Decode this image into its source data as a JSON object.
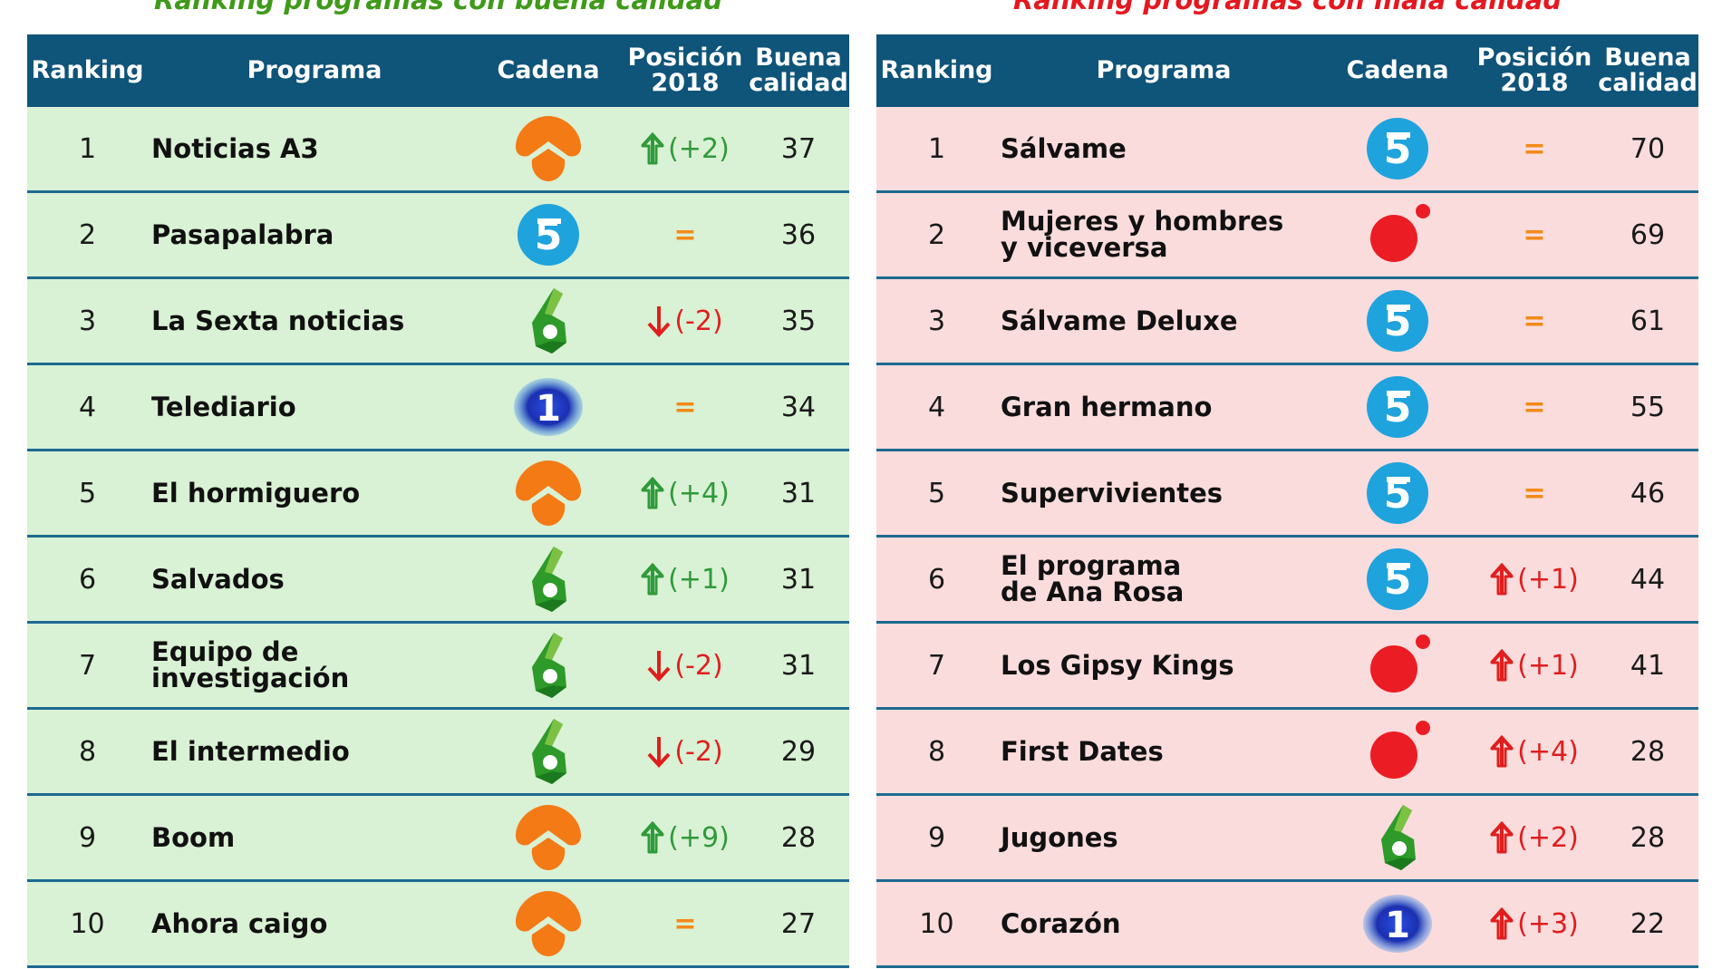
{
  "headers": {
    "ranking": "Ranking",
    "programa": "Programa",
    "cadena": "Cadena",
    "posicion_l1": "Posición",
    "posicion_l2": "2018",
    "calidad_l1": "Buena",
    "calidad_l2": "calidad"
  },
  "good": {
    "title": "Ranking programas con buena calidad",
    "rows": [
      {
        "rank": "1",
        "name_l1": "Noticias A3",
        "name_l2": "",
        "channel": "antena3",
        "channel_icon": "antena3-logo-icon",
        "move": "(+2)",
        "dir": "up",
        "score": "37"
      },
      {
        "rank": "2",
        "name_l1": "Pasapalabra",
        "name_l2": "",
        "channel": "telecinco",
        "channel_icon": "telecinco-logo-icon",
        "move": "=",
        "dir": "eq",
        "score": "36"
      },
      {
        "rank": "3",
        "name_l1": "La Sexta noticias",
        "name_l2": "",
        "channel": "lasexta",
        "channel_icon": "lasexta-logo-icon",
        "move": "(-2)",
        "dir": "down",
        "score": "35"
      },
      {
        "rank": "4",
        "name_l1": "Telediario",
        "name_l2": "",
        "channel": "la1",
        "channel_icon": "la1-logo-icon",
        "move": "=",
        "dir": "eq",
        "score": "34"
      },
      {
        "rank": "5",
        "name_l1": "El hormiguero",
        "name_l2": "",
        "channel": "antena3",
        "channel_icon": "antena3-logo-icon",
        "move": "(+4)",
        "dir": "up",
        "score": "31"
      },
      {
        "rank": "6",
        "name_l1": "Salvados",
        "name_l2": "",
        "channel": "lasexta",
        "channel_icon": "lasexta-logo-icon",
        "move": "(+1)",
        "dir": "up",
        "score": "31"
      },
      {
        "rank": "7",
        "name_l1": "Equipo de investigación",
        "name_l2": "",
        "channel": "lasexta",
        "channel_icon": "lasexta-logo-icon",
        "move": "(-2)",
        "dir": "down",
        "score": "31"
      },
      {
        "rank": "8",
        "name_l1": "El intermedio",
        "name_l2": "",
        "channel": "lasexta",
        "channel_icon": "lasexta-logo-icon",
        "move": "(-2)",
        "dir": "down",
        "score": "29"
      },
      {
        "rank": "9",
        "name_l1": "Boom",
        "name_l2": "",
        "channel": "antena3",
        "channel_icon": "antena3-logo-icon",
        "move": "(+9)",
        "dir": "up",
        "score": "28"
      },
      {
        "rank": "10",
        "name_l1": "Ahora caigo",
        "name_l2": "",
        "channel": "antena3",
        "channel_icon": "antena3-logo-icon",
        "move": "=",
        "dir": "eq",
        "score": "27"
      }
    ]
  },
  "bad": {
    "title": "Ranking programas con mala calidad",
    "rows": [
      {
        "rank": "1",
        "name_l1": "Sálvame",
        "name_l2": "",
        "channel": "telecinco",
        "channel_icon": "telecinco-logo-icon",
        "move": "=",
        "dir": "eq",
        "score": "70"
      },
      {
        "rank": "2",
        "name_l1": "Mujeres y hombres",
        "name_l2": "y viceversa",
        "channel": "cuatro",
        "channel_icon": "cuatro-logo-icon",
        "move": "=",
        "dir": "eq",
        "score": "69"
      },
      {
        "rank": "3",
        "name_l1": "Sálvame Deluxe",
        "name_l2": "",
        "channel": "telecinco",
        "channel_icon": "telecinco-logo-icon",
        "move": "=",
        "dir": "eq",
        "score": "61"
      },
      {
        "rank": "4",
        "name_l1": "Gran hermano",
        "name_l2": "",
        "channel": "telecinco",
        "channel_icon": "telecinco-logo-icon",
        "move": "=",
        "dir": "eq",
        "score": "55"
      },
      {
        "rank": "5",
        "name_l1": "Supervivientes",
        "name_l2": "",
        "channel": "telecinco",
        "channel_icon": "telecinco-logo-icon",
        "move": "=",
        "dir": "eq",
        "score": "46"
      },
      {
        "rank": "6",
        "name_l1": "El programa",
        "name_l2": "de Ana Rosa",
        "channel": "telecinco",
        "channel_icon": "telecinco-logo-icon",
        "move": "(+1)",
        "dir": "upred",
        "score": "44"
      },
      {
        "rank": "7",
        "name_l1": "Los Gipsy Kings",
        "name_l2": "",
        "channel": "cuatro",
        "channel_icon": "cuatro-logo-icon",
        "move": "(+1)",
        "dir": "upred",
        "score": "41"
      },
      {
        "rank": "8",
        "name_l1": "First Dates",
        "name_l2": "",
        "channel": "cuatro",
        "channel_icon": "cuatro-logo-icon",
        "move": "(+4)",
        "dir": "upred",
        "score": "28"
      },
      {
        "rank": "9",
        "name_l1": "Jugones",
        "name_l2": "",
        "channel": "lasexta",
        "channel_icon": "lasexta-logo-icon",
        "move": "(+2)",
        "dir": "upred",
        "score": "28"
      },
      {
        "rank": "10",
        "name_l1": "Corazón",
        "name_l2": "",
        "channel": "la1",
        "channel_icon": "la1-logo-icon",
        "move": "(+3)",
        "dir": "upred",
        "score": "22"
      }
    ]
  },
  "colors": {
    "header_bg": "#0f5479",
    "good_row": "#d9f1d4",
    "bad_row": "#fadcdc",
    "good_title": "#3f9a1a",
    "bad_title": "#e5171f",
    "up_green": "#2f9a3a",
    "red": "#e01e1e",
    "equal": "#f38a18"
  }
}
